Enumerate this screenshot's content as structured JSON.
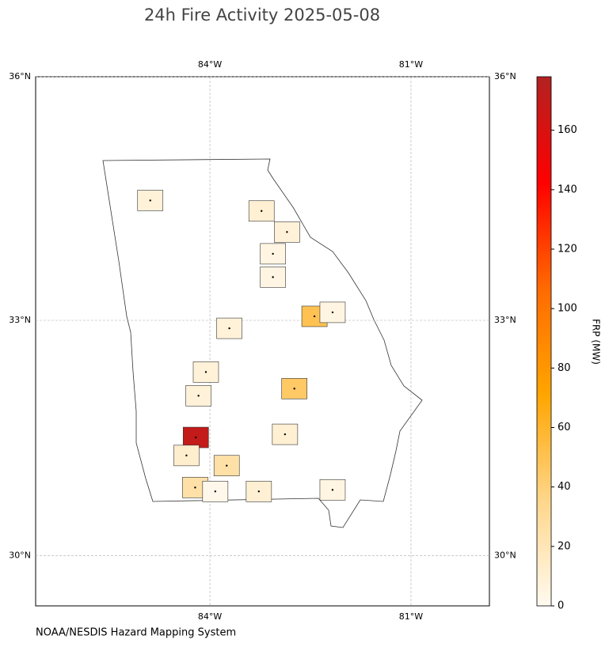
{
  "chart_data": {
    "type": "choropleth",
    "title": "24h Fire Activity 2025-05-08",
    "credit": "NOAA/NESDIS Hazard Mapping System",
    "colorbar_label": "FRP (MW)",
    "xlim": [
      -86.6,
      -79.83
    ],
    "ylim": [
      29.35,
      36
    ],
    "xticks": [
      {
        "value": -84,
        "label": "84°W"
      },
      {
        "value": -81,
        "label": "81°W"
      }
    ],
    "yticks": [
      {
        "value": 30,
        "label": "30°N"
      },
      {
        "value": 33,
        "label": "33°N"
      },
      {
        "value": 36,
        "label": "36°N"
      }
    ],
    "grid": true,
    "clim": [
      0,
      178
    ],
    "cticks": [
      0,
      20,
      40,
      60,
      80,
      100,
      120,
      140,
      160
    ],
    "colormap": [
      "#fffaf0",
      "#ffd68a",
      "#ffa500",
      "#ff6a00",
      "#ff0000",
      "#b22222"
    ],
    "fires": [
      {
        "lon": -84.21,
        "lat": 31.52,
        "frp": 170
      },
      {
        "lon": -82.44,
        "lat": 33.05,
        "frp": 50
      },
      {
        "lon": -82.74,
        "lat": 32.14,
        "frp": 45
      },
      {
        "lon": -83.75,
        "lat": 31.16,
        "frp": 25
      },
      {
        "lon": -84.22,
        "lat": 30.88,
        "frp": 25
      },
      {
        "lon": -82.88,
        "lat": 31.56,
        "frp": 10
      },
      {
        "lon": -83.27,
        "lat": 30.83,
        "frp": 10
      },
      {
        "lon": -82.17,
        "lat": 30.85,
        "frp": 5
      },
      {
        "lon": -83.23,
        "lat": 34.36,
        "frp": 10
      },
      {
        "lon": -82.85,
        "lat": 34.1,
        "frp": 8
      },
      {
        "lon": -84.89,
        "lat": 34.49,
        "frp": 8
      },
      {
        "lon": -83.71,
        "lat": 32.9,
        "frp": 8
      },
      {
        "lon": -84.06,
        "lat": 32.35,
        "frp": 8
      },
      {
        "lon": -84.17,
        "lat": 32.05,
        "frp": 8
      },
      {
        "lon": -84.35,
        "lat": 31.29,
        "frp": 12
      },
      {
        "lon": -83.06,
        "lat": 33.83,
        "frp": 5
      },
      {
        "lon": -83.06,
        "lat": 33.54,
        "frp": 5
      },
      {
        "lon": -82.17,
        "lat": 33.1,
        "frp": 5
      },
      {
        "lon": -83.92,
        "lat": 30.83,
        "frp": 2
      }
    ]
  }
}
